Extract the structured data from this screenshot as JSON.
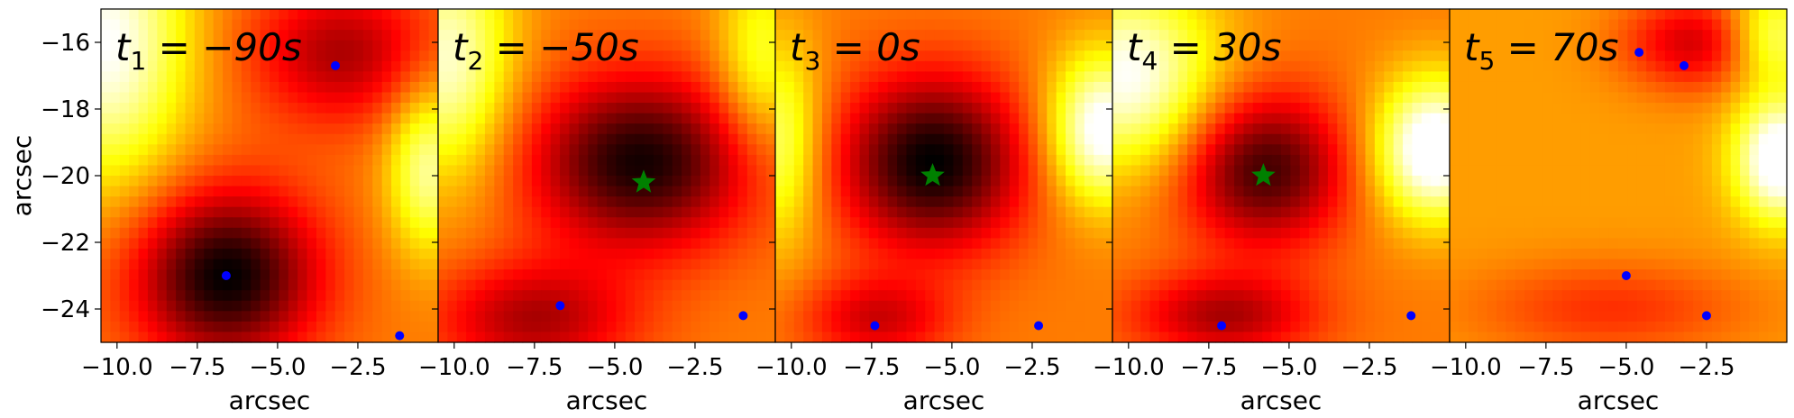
{
  "chart_data": {
    "type": "heatmap",
    "colormap": "hot",
    "xlabel": "arcsec",
    "ylabel": "arcsec",
    "xlim": [
      -10.5,
      0.0
    ],
    "ylim": [
      -25.0,
      -15.0
    ],
    "xticks": [
      "-10.0",
      "-7.5",
      "-5.0",
      "-2.5"
    ],
    "yticks": [
      "-16",
      "-18",
      "-20",
      "-22",
      "-24"
    ],
    "colors": {
      "dot": "#0000ff",
      "star": "#008000"
    },
    "panels": [
      {
        "t_sub": "1",
        "t_value": "−90s",
        "blobs": [
          {
            "x": -6.6,
            "y": -23.0,
            "amp": 1.0,
            "sx": 2.0,
            "sy": 1.8
          },
          {
            "x": -3.0,
            "y": -16.3,
            "amp": 0.55,
            "sx": 2.0,
            "sy": 1.5
          }
        ],
        "base": 0.55,
        "hot_zones": [
          {
            "x": -10.3,
            "y": -16.0,
            "amp": 0.45,
            "sx": 1.8,
            "sy": 3.0
          },
          {
            "x": -0.3,
            "y": -19.8,
            "amp": 0.35,
            "sx": 0.9,
            "sy": 1.8
          }
        ],
        "dots": [
          {
            "x": -3.2,
            "y": -16.7
          },
          {
            "x": -6.6,
            "y": -23.0
          },
          {
            "x": -1.2,
            "y": -24.8
          }
        ],
        "star": null
      },
      {
        "t_sub": "2",
        "t_value": "−50s",
        "blobs": [
          {
            "x": -4.2,
            "y": -19.6,
            "amp": 0.95,
            "sx": 2.4,
            "sy": 1.8
          },
          {
            "x": -7.5,
            "y": -24.3,
            "amp": 0.55,
            "sx": 2.2,
            "sy": 1.2
          }
        ],
        "base": 0.55,
        "hot_zones": [
          {
            "x": -10.2,
            "y": -16.5,
            "amp": 0.4,
            "sx": 1.4,
            "sy": 2.5
          },
          {
            "x": -0.4,
            "y": -16.5,
            "amp": 0.25,
            "sx": 1.0,
            "sy": 2.0
          }
        ],
        "dots": [
          {
            "x": -6.7,
            "y": -23.9
          },
          {
            "x": -1.0,
            "y": -24.2
          }
        ],
        "star": {
          "x": -4.1,
          "y": -20.2
        }
      },
      {
        "t_sub": "3",
        "t_value": "0s",
        "blobs": [
          {
            "x": -5.6,
            "y": -19.6,
            "amp": 1.0,
            "sx": 2.0,
            "sy": 1.8
          },
          {
            "x": -7.3,
            "y": -24.3,
            "amp": 0.45,
            "sx": 1.6,
            "sy": 0.9
          }
        ],
        "base": 0.55,
        "hot_zones": [
          {
            "x": -0.3,
            "y": -18.6,
            "amp": 0.5,
            "sx": 1.2,
            "sy": 1.6
          },
          {
            "x": -10.3,
            "y": -19.0,
            "amp": 0.3,
            "sx": 0.9,
            "sy": 2.2
          }
        ],
        "dots": [
          {
            "x": -7.4,
            "y": -24.5
          },
          {
            "x": -2.3,
            "y": -24.5
          }
        ],
        "star": {
          "x": -5.6,
          "y": -20.0
        }
      },
      {
        "t_sub": "4",
        "t_value": "30s",
        "blobs": [
          {
            "x": -5.8,
            "y": -19.8,
            "amp": 0.85,
            "sx": 1.8,
            "sy": 1.6
          },
          {
            "x": -7.0,
            "y": -24.2,
            "amp": 0.55,
            "sx": 2.0,
            "sy": 0.9
          }
        ],
        "base": 0.55,
        "hot_zones": [
          {
            "x": -0.5,
            "y": -19.2,
            "amp": 0.55,
            "sx": 1.3,
            "sy": 1.5
          },
          {
            "x": -10.0,
            "y": -17.0,
            "amp": 0.45,
            "sx": 2.0,
            "sy": 2.0
          }
        ],
        "dots": [
          {
            "x": -7.1,
            "y": -24.5
          },
          {
            "x": -1.2,
            "y": -24.2
          }
        ],
        "star": {
          "x": -5.8,
          "y": -20.0
        }
      },
      {
        "t_sub": "5",
        "t_value": "70s",
        "blobs": [
          {
            "x": -2.8,
            "y": -16.0,
            "amp": 0.55,
            "sx": 1.6,
            "sy": 1.0
          },
          {
            "x": -5.5,
            "y": -24.0,
            "amp": 0.3,
            "sx": 3.0,
            "sy": 1.0
          }
        ],
        "base": 0.6,
        "hot_zones": [
          {
            "x": -0.2,
            "y": -19.5,
            "amp": 0.5,
            "sx": 1.0,
            "sy": 1.3
          },
          {
            "x": -0.5,
            "y": -15.8,
            "amp": 0.3,
            "sx": 1.0,
            "sy": 1.0
          }
        ],
        "dots": [
          {
            "x": -4.6,
            "y": -16.3
          },
          {
            "x": -3.2,
            "y": -16.7
          },
          {
            "x": -5.0,
            "y": -23.0
          },
          {
            "x": -2.5,
            "y": -24.2
          }
        ],
        "star": null
      }
    ]
  }
}
